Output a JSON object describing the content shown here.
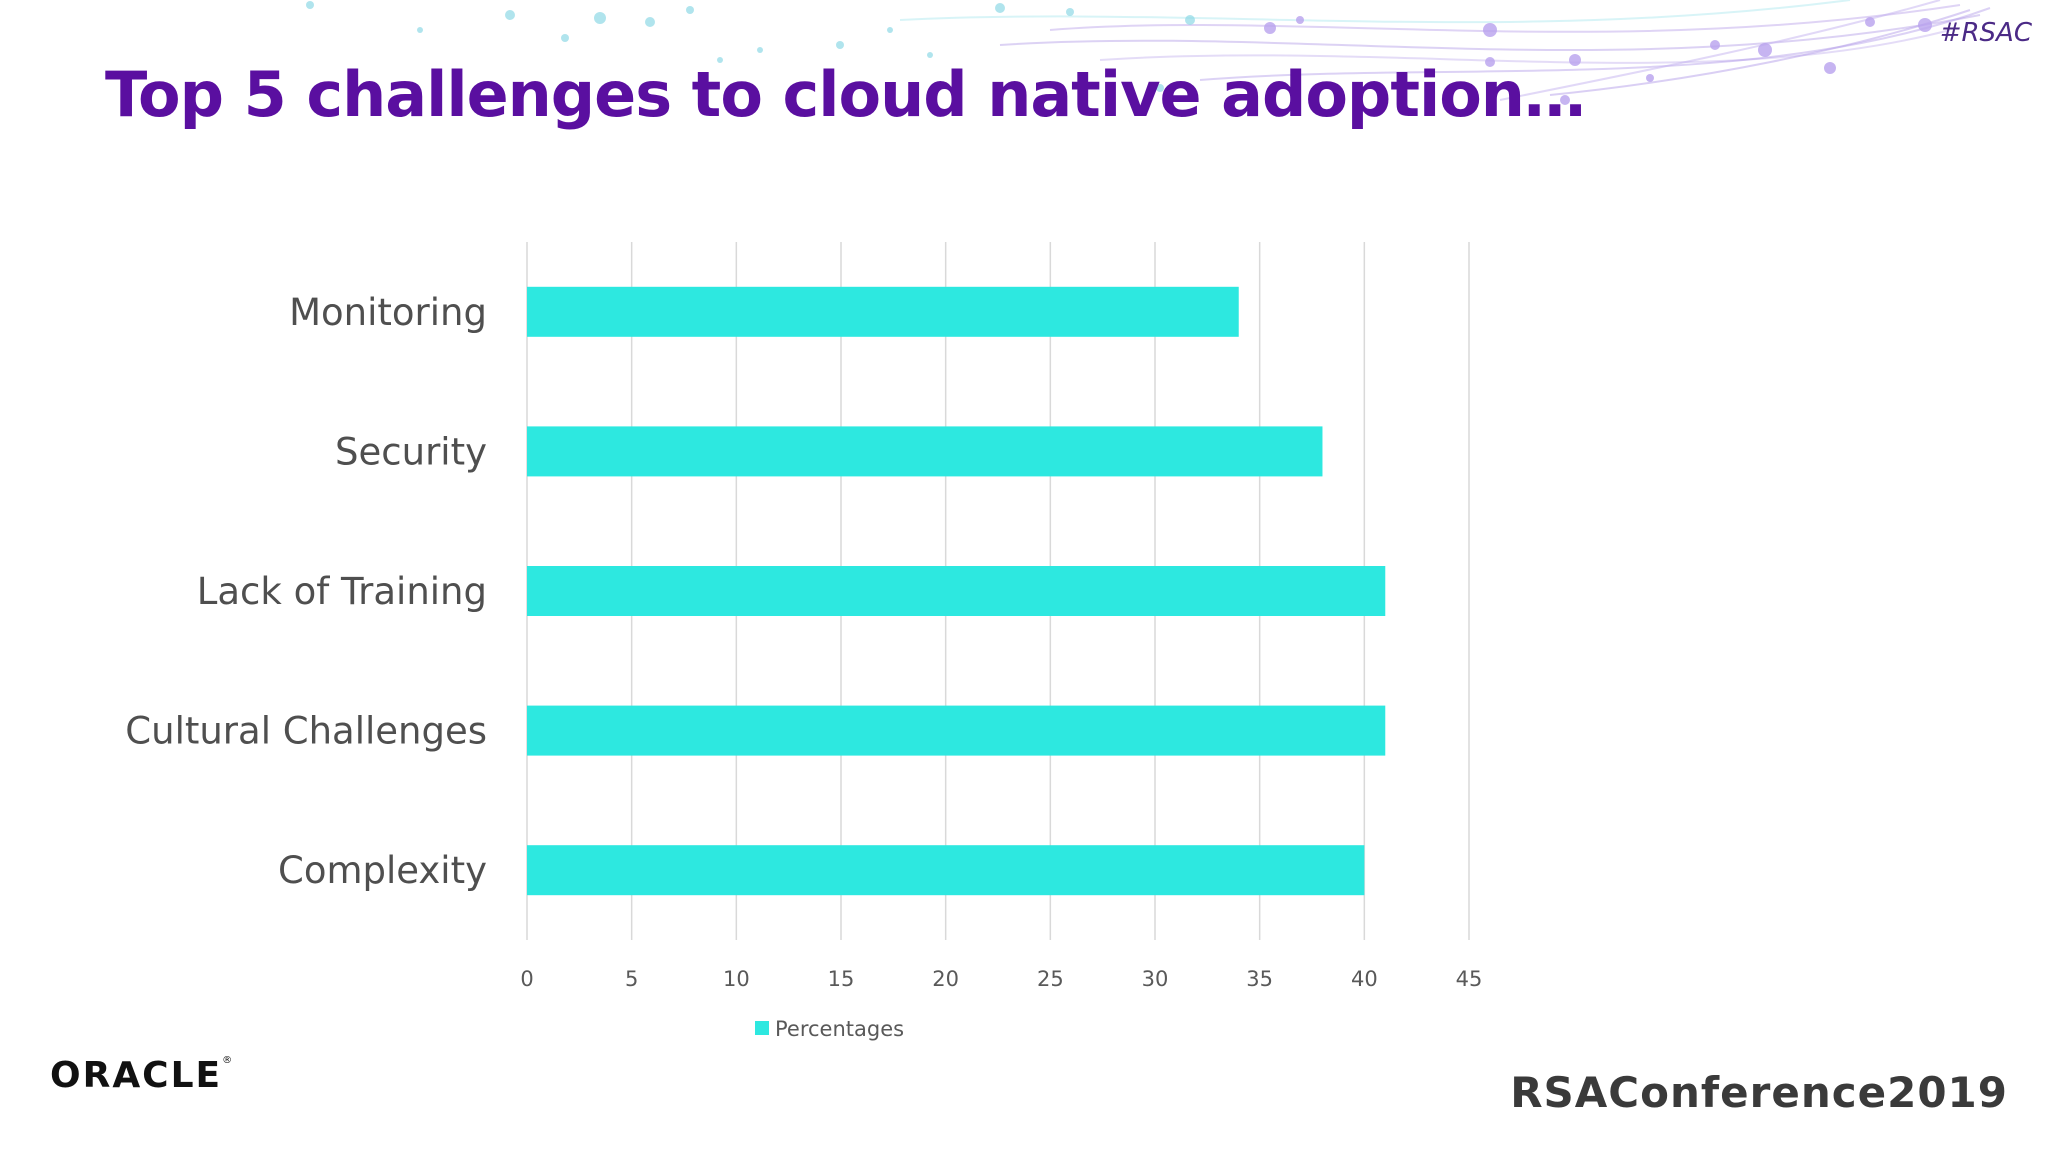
{
  "slide": {
    "title": "Top 5 challenges to cloud native adoption…",
    "hashtag": "#RSAC",
    "footer_left_logo": "ORACLE",
    "footer_right_logo": "RSAConference2019",
    "accent_color": "#5a0fa0"
  },
  "chart_data": {
    "type": "bar",
    "orientation": "horizontal",
    "categories": [
      "Monitoring",
      "Security",
      "Lack of Training",
      "Cultural Challenges",
      "Complexity"
    ],
    "series": [
      {
        "name": "Percentages",
        "values": [
          34,
          38,
          41,
          41,
          40
        ],
        "color": "#2de8e0"
      }
    ],
    "xlim": [
      0,
      45
    ],
    "xticks": [
      0,
      5,
      10,
      15,
      20,
      25,
      30,
      35,
      40,
      45
    ],
    "grid": true,
    "legend": "bottom"
  }
}
